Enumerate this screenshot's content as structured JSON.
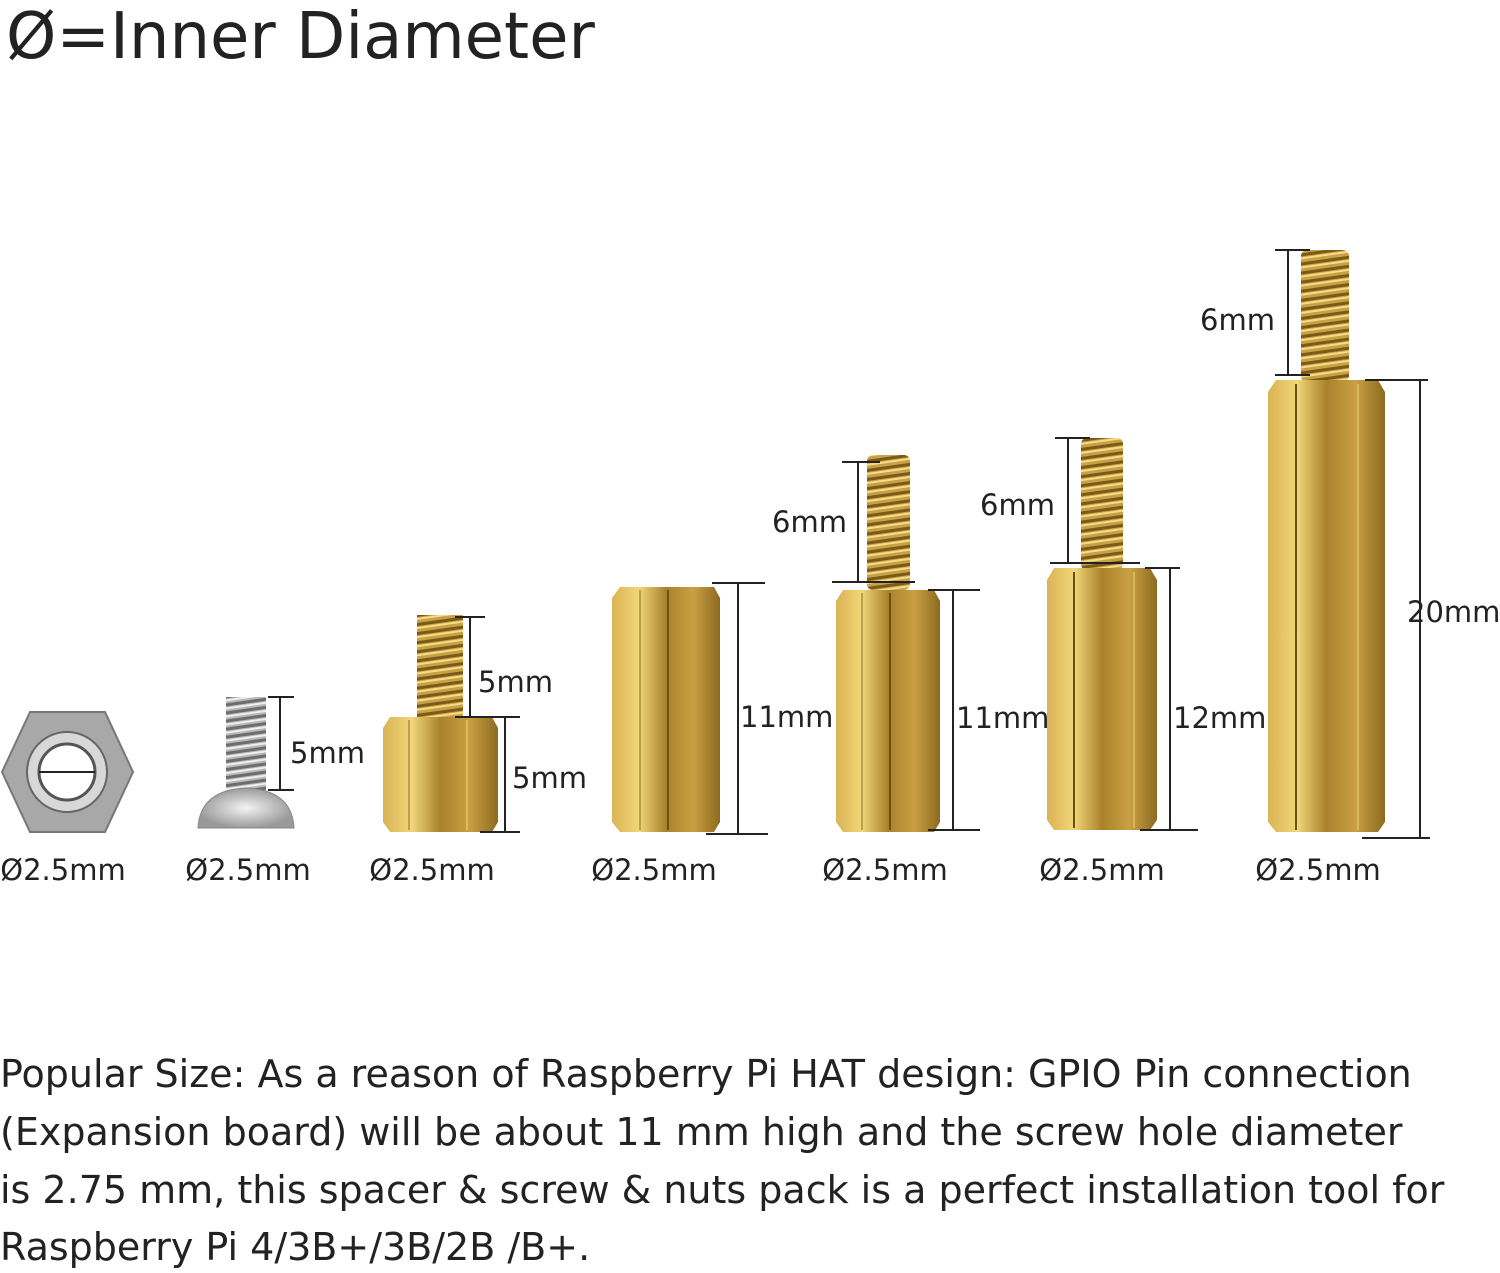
{
  "title": "Ø=Inner Diameter",
  "items": [
    {
      "diameter": "Ø2.5mm"
    },
    {
      "diameter": "Ø2.5mm",
      "dims": [
        "5mm"
      ]
    },
    {
      "diameter": "Ø2.5mm",
      "dims": [
        "5mm",
        "5mm"
      ]
    },
    {
      "diameter": "Ø2.5mm",
      "dims": [
        "11mm"
      ]
    },
    {
      "diameter": "Ø2.5mm",
      "dims": [
        "6mm",
        "11mm"
      ]
    },
    {
      "diameter": "Ø2.5mm",
      "dims": [
        "6mm",
        "12mm"
      ]
    },
    {
      "diameter": "Ø2.5mm",
      "dims": [
        "6mm",
        "20mm"
      ]
    }
  ],
  "description": [
    "Popular Size:  As a reason of Raspberry Pi HAT design: GPIO Pin connection",
    "(Expansion board) will be about 11 mm high and the screw hole diameter",
    "is 2.75 mm, this spacer & screw & nuts pack is a perfect installation tool for",
    "Raspberry Pi 4/3B+/3B/2B /B+."
  ]
}
